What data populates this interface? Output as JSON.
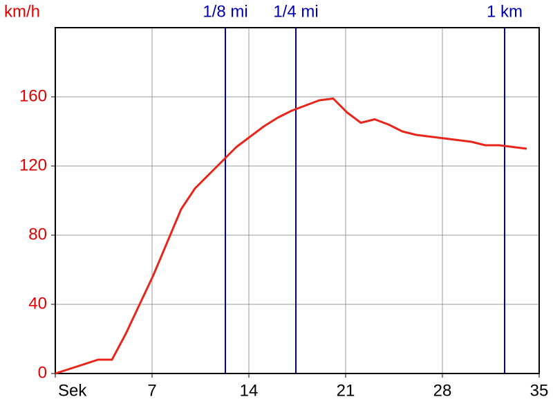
{
  "chart_data": {
    "type": "line",
    "y_label": "km/h",
    "x": [
      0,
      3.1,
      4.1,
      5.1,
      7.1,
      9.1,
      10.1,
      11.1,
      12.1,
      13.1,
      14.1,
      15.1,
      16.1,
      17.1,
      18.1,
      19.1,
      20.1,
      21.1,
      22.1,
      23.1,
      24.1,
      25.1,
      26.1,
      27.1,
      28.1,
      29.1,
      30.1,
      31.1,
      32.1,
      33.1,
      34.1
    ],
    "series": [
      {
        "color": "#e8251a",
        "values": [
          0,
          8,
          8,
          23,
          57,
          95,
          107,
          115,
          123,
          131,
          137,
          143,
          148,
          152,
          155,
          158,
          159,
          151,
          145,
          147,
          144,
          140,
          138,
          137,
          136,
          135,
          134,
          132,
          132,
          131,
          130
        ]
      }
    ],
    "xlim": [
      0,
      35
    ],
    "xticks": [
      {
        "value": 0,
        "label": "Sek"
      },
      7,
      14,
      21,
      28,
      35
    ],
    "ylim": [
      0,
      200
    ],
    "yticks": [
      0,
      40,
      80,
      120,
      160
    ],
    "grid": true,
    "markers": [
      {
        "x": 12.3,
        "label": "1/8 mi"
      },
      {
        "x": 17.4,
        "label": "1/4 mi"
      },
      {
        "x": 32.5,
        "label": "1 km"
      }
    ],
    "marker_color": "#0000b0",
    "y_tick_color": "#e00000"
  }
}
